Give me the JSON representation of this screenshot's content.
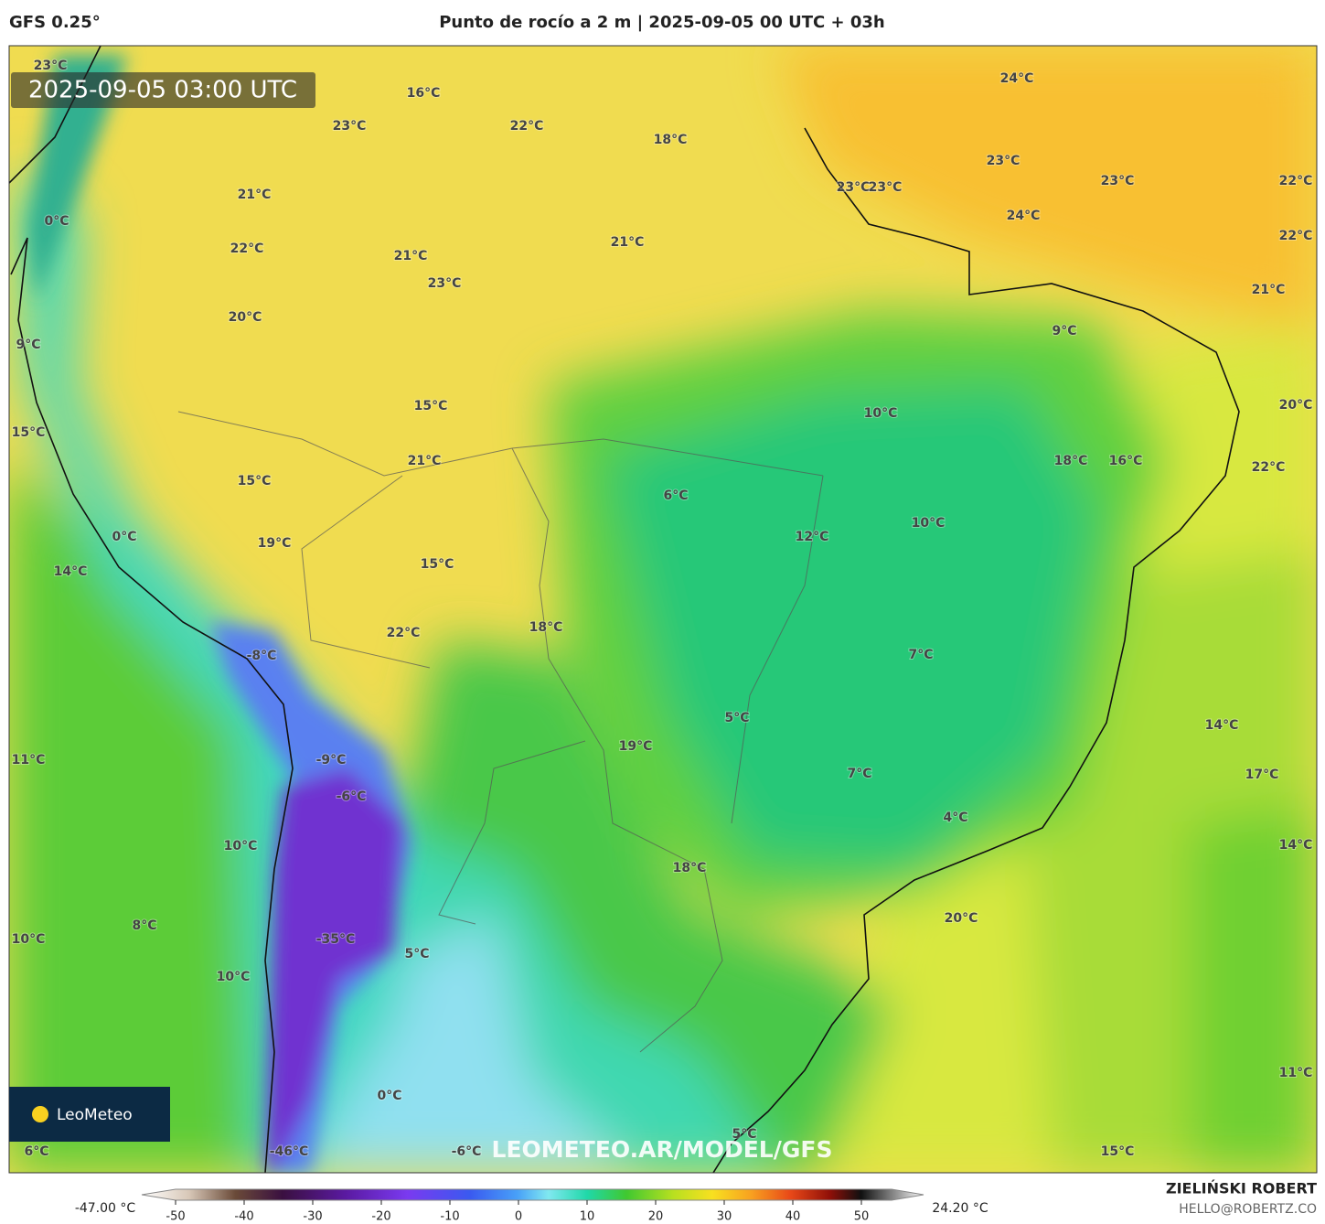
{
  "header": {
    "model": "GFS 0.25°",
    "title": "Punto de rocío a 2 m | 2025-09-05 00 UTC + 03h"
  },
  "timestamp": "2025-09-05 03:00 UTC",
  "logo": "LeoMeteo",
  "watermark": "LEOMETEO.AR/MODEL/GFS",
  "labels": [
    "23°C",
    "16°C",
    "23°C",
    "22°C",
    "18°C",
    "24°C",
    "23°C",
    "23°C",
    "23°C",
    "23°C",
    "22°C",
    "24°C",
    "22°C",
    "21°C",
    "0°C",
    "22°C",
    "21°C",
    "21°C",
    "23°C",
    "21°C",
    "20°C",
    "9°C",
    "9°C",
    "15°C",
    "10°C",
    "20°C",
    "15°C",
    "21°C",
    "18°C",
    "16°C",
    "22°C",
    "15°C",
    "6°C",
    "10°C",
    "0°C",
    "12°C",
    "19°C",
    "15°C",
    "14°C",
    "18°C",
    "22°C",
    "-8°C",
    "7°C",
    "5°C",
    "14°C",
    "19°C",
    "11°C",
    "-9°C",
    "7°C",
    "17°C",
    "-6°C",
    "4°C",
    "10°C",
    "14°C",
    "18°C",
    "20°C",
    "10°C",
    "8°C",
    "-35°C",
    "5°C",
    "10°C",
    "11°C",
    "0°C",
    "6°C",
    "-46°C",
    "-6°C",
    "5°C",
    "15°C"
  ],
  "colorbar": {
    "min_label": "-47.00 °C",
    "max_label": "24.20 °C",
    "ticks": [
      -50,
      -40,
      -30,
      -20,
      -10,
      0,
      10,
      20,
      30,
      40,
      50
    ]
  },
  "credits": {
    "author": "ZIELIŃSKI ROBERT",
    "email": "HELLO@ROBERTZ.CO"
  }
}
